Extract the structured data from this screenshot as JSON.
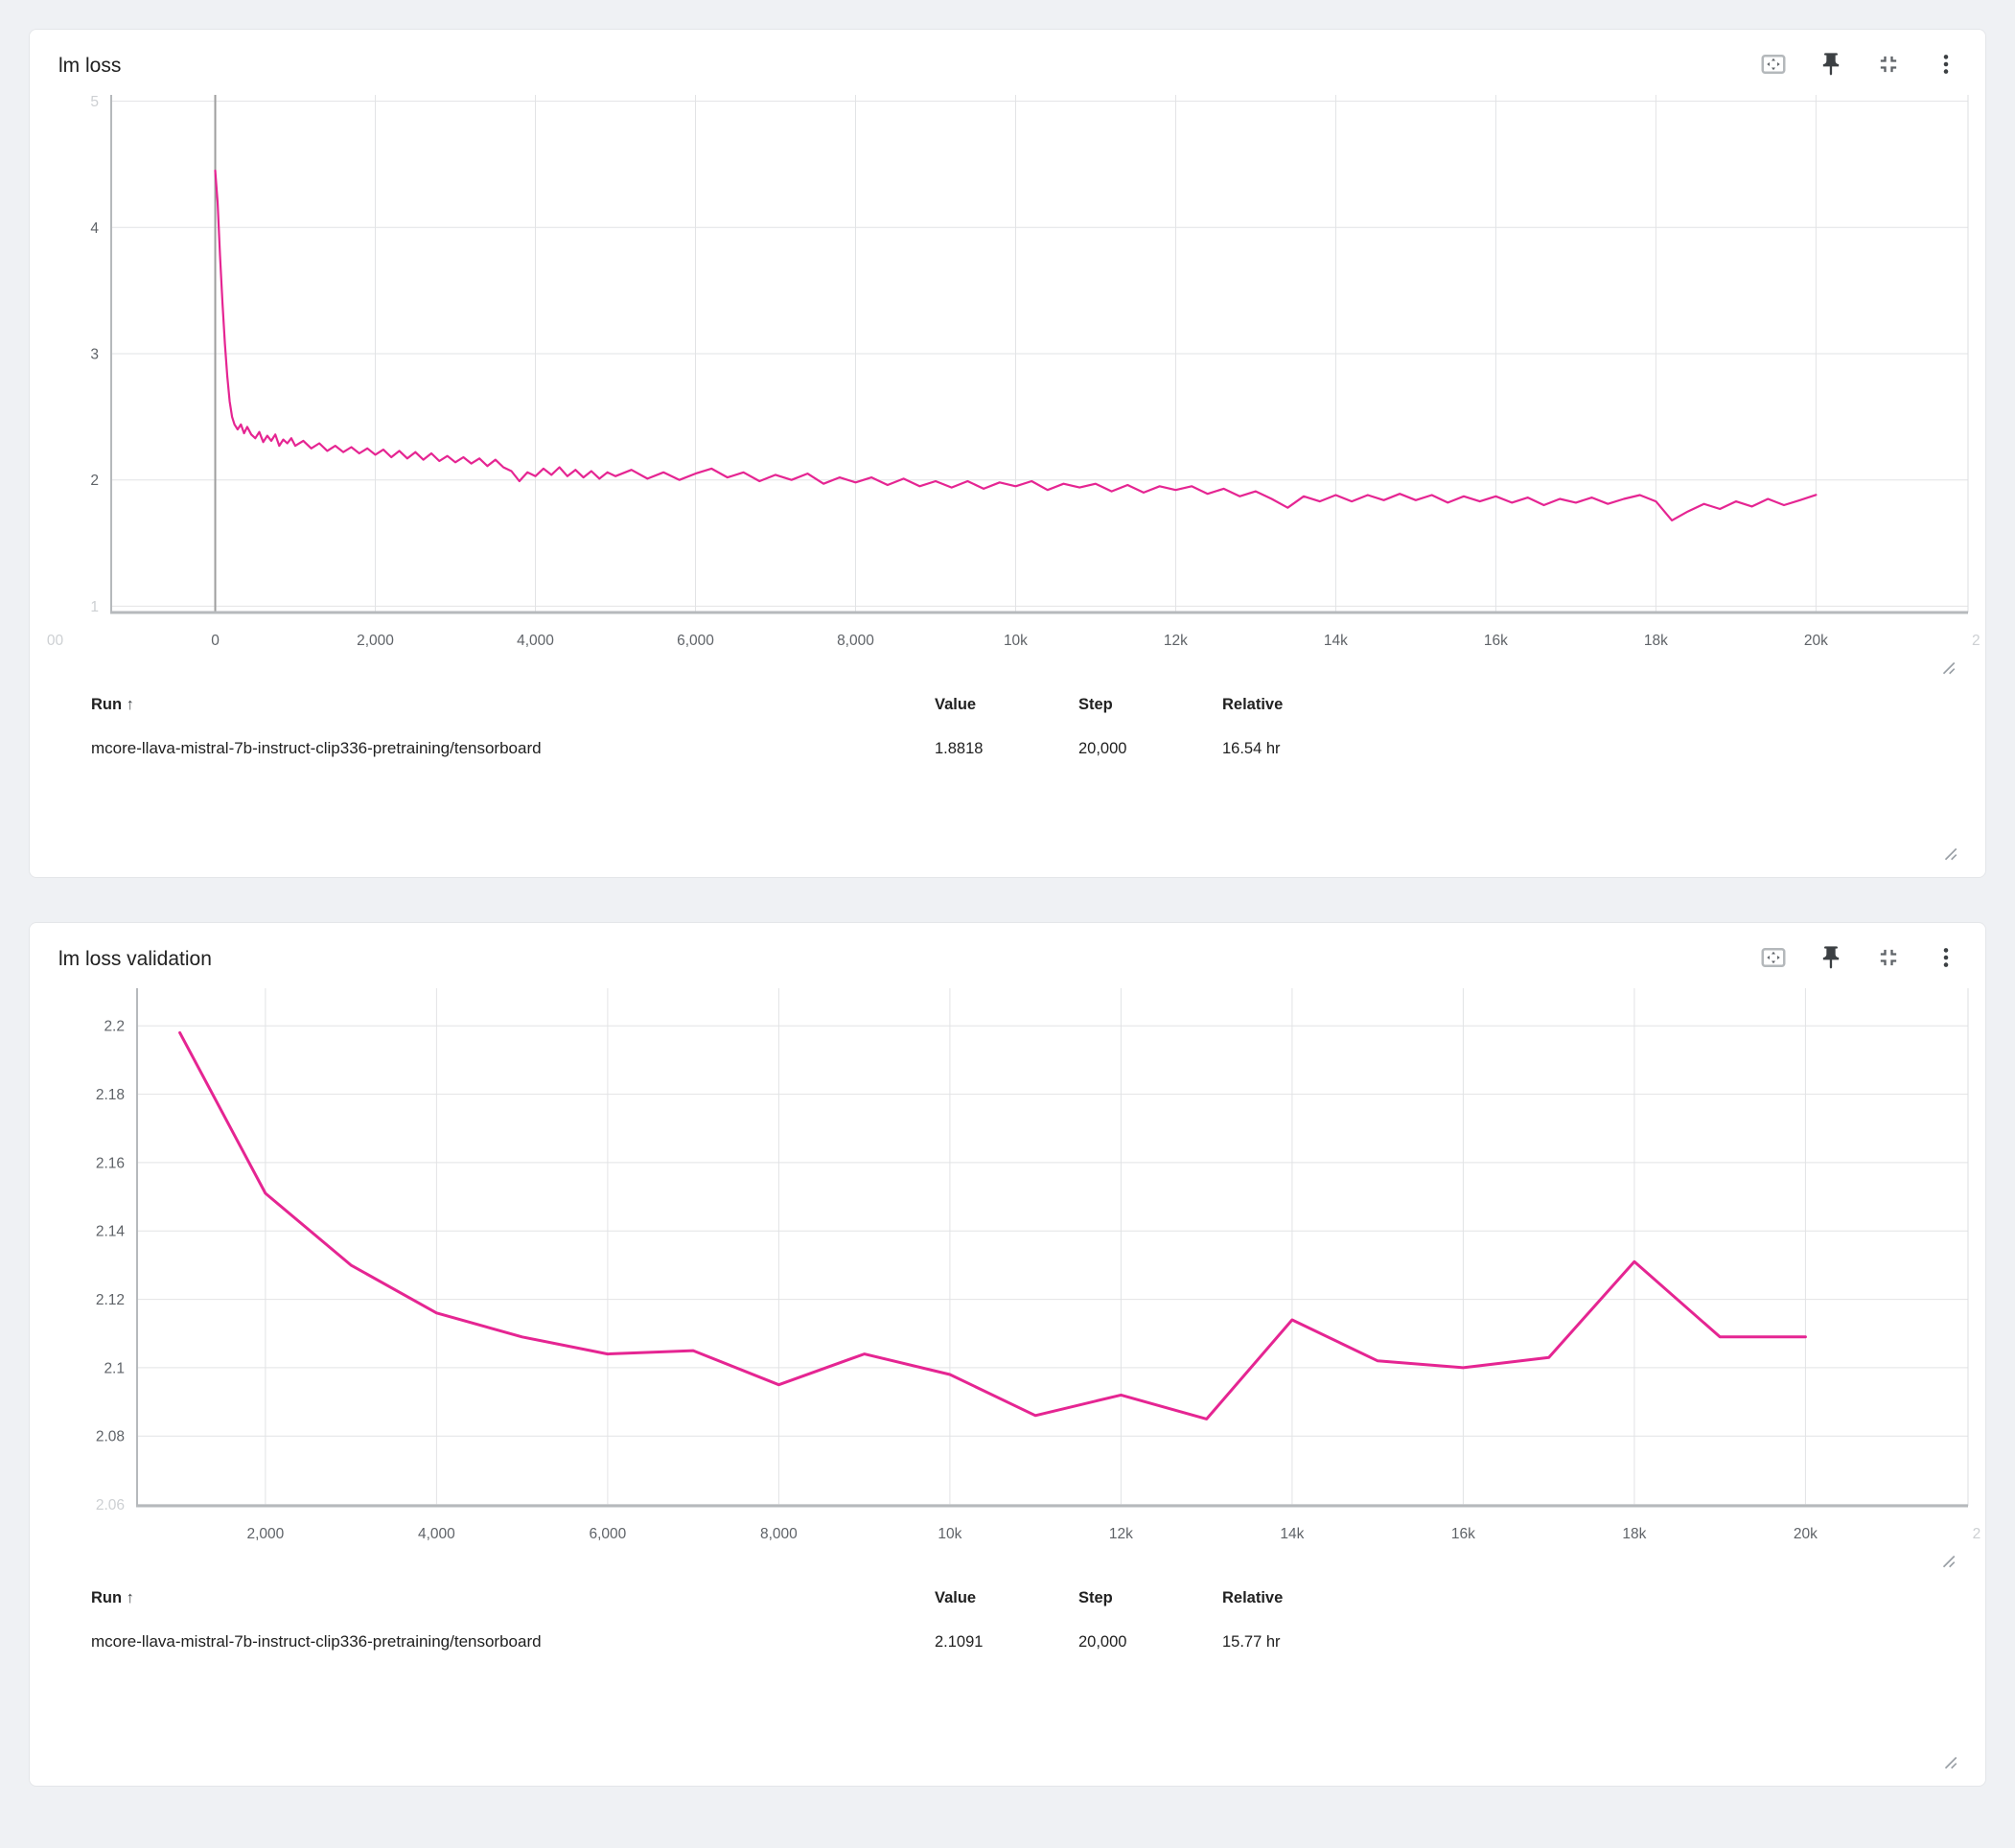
{
  "page": {
    "background": "#eff1f4",
    "accent_pink": "#e52592"
  },
  "cards": [
    {
      "title": "lm loss",
      "toolbar": {
        "icons": [
          "fit-to-data-icon",
          "pin-icon",
          "collapse-icon",
          "more-options-icon"
        ]
      },
      "table": {
        "headers": {
          "run": "Run",
          "value": "Value",
          "step": "Step",
          "relative": "Relative"
        },
        "sort_arrow": "↑",
        "rows": [
          {
            "name": "mcore-llava-mistral-7b-instruct-clip336-pretraining/tensorboard",
            "value": "1.8818",
            "step": "20,000",
            "relative": "16.54 hr",
            "color": "#e52592"
          }
        ]
      },
      "chart_data": {
        "type": "line",
        "title": "lm loss",
        "grid": true,
        "x_domain": [
          -1300,
          21900
        ],
        "y_domain": [
          0.95,
          5.05
        ],
        "y_ticks": [
          {
            "v": 1,
            "label": "1",
            "faded": true
          },
          {
            "v": 2,
            "label": "2"
          },
          {
            "v": 3,
            "label": "3"
          },
          {
            "v": 4,
            "label": "4"
          },
          {
            "v": 5,
            "label": "5",
            "faded": true
          }
        ],
        "x_ticks": [
          {
            "v": -2000,
            "label": "00",
            "faded": true,
            "grid": false
          },
          {
            "v": 0,
            "label": "0",
            "strong": true
          },
          {
            "v": 2000,
            "label": "2,000"
          },
          {
            "v": 4000,
            "label": "4,000"
          },
          {
            "v": 6000,
            "label": "6,000"
          },
          {
            "v": 8000,
            "label": "8,000"
          },
          {
            "v": 10000,
            "label": "10k"
          },
          {
            "v": 12000,
            "label": "12k"
          },
          {
            "v": 14000,
            "label": "14k"
          },
          {
            "v": 16000,
            "label": "16k"
          },
          {
            "v": 18000,
            "label": "18k"
          },
          {
            "v": 20000,
            "label": "20k"
          },
          {
            "v": 22000,
            "label": "2",
            "faded": true,
            "grid": false
          }
        ],
        "series": [
          {
            "name": "mcore-llava-mistral-7b-instruct-clip336-pretraining/tensorboard",
            "color": "#e52592",
            "width": 2.2,
            "final_value": 1.8818,
            "final_step": 20000,
            "points": [
              [
                0,
                4.45
              ],
              [
                30,
                4.2
              ],
              [
                60,
                3.78
              ],
              [
                90,
                3.4
              ],
              [
                120,
                3.08
              ],
              [
                150,
                2.82
              ],
              [
                180,
                2.62
              ],
              [
                210,
                2.5
              ],
              [
                240,
                2.44
              ],
              [
                280,
                2.4
              ],
              [
                320,
                2.44
              ],
              [
                360,
                2.37
              ],
              [
                400,
                2.42
              ],
              [
                450,
                2.36
              ],
              [
                500,
                2.33
              ],
              [
                550,
                2.38
              ],
              [
                600,
                2.3
              ],
              [
                650,
                2.35
              ],
              [
                700,
                2.31
              ],
              [
                750,
                2.36
              ],
              [
                800,
                2.27
              ],
              [
                850,
                2.32
              ],
              [
                900,
                2.29
              ],
              [
                950,
                2.33
              ],
              [
                1000,
                2.27
              ],
              [
                1100,
                2.31
              ],
              [
                1200,
                2.25
              ],
              [
                1300,
                2.29
              ],
              [
                1400,
                2.23
              ],
              [
                1500,
                2.27
              ],
              [
                1600,
                2.22
              ],
              [
                1700,
                2.26
              ],
              [
                1800,
                2.21
              ],
              [
                1900,
                2.25
              ],
              [
                2000,
                2.2
              ],
              [
                2100,
                2.24
              ],
              [
                2200,
                2.18
              ],
              [
                2300,
                2.23
              ],
              [
                2400,
                2.17
              ],
              [
                2500,
                2.22
              ],
              [
                2600,
                2.16
              ],
              [
                2700,
                2.21
              ],
              [
                2800,
                2.15
              ],
              [
                2900,
                2.19
              ],
              [
                3000,
                2.14
              ],
              [
                3100,
                2.18
              ],
              [
                3200,
                2.13
              ],
              [
                3300,
                2.17
              ],
              [
                3400,
                2.11
              ],
              [
                3500,
                2.16
              ],
              [
                3600,
                2.1
              ],
              [
                3700,
                2.07
              ],
              [
                3800,
                1.99
              ],
              [
                3900,
                2.06
              ],
              [
                4000,
                2.03
              ],
              [
                4100,
                2.09
              ],
              [
                4200,
                2.04
              ],
              [
                4300,
                2.1
              ],
              [
                4400,
                2.03
              ],
              [
                4500,
                2.08
              ],
              [
                4600,
                2.02
              ],
              [
                4700,
                2.07
              ],
              [
                4800,
                2.01
              ],
              [
                4900,
                2.06
              ],
              [
                5000,
                2.03
              ],
              [
                5200,
                2.08
              ],
              [
                5400,
                2.01
              ],
              [
                5600,
                2.06
              ],
              [
                5800,
                2.0
              ],
              [
                6000,
                2.05
              ],
              [
                6200,
                2.09
              ],
              [
                6400,
                2.02
              ],
              [
                6600,
                2.06
              ],
              [
                6800,
                1.99
              ],
              [
                7000,
                2.04
              ],
              [
                7200,
                2.0
              ],
              [
                7400,
                2.05
              ],
              [
                7600,
                1.97
              ],
              [
                7800,
                2.02
              ],
              [
                8000,
                1.98
              ],
              [
                8200,
                2.02
              ],
              [
                8400,
                1.96
              ],
              [
                8600,
                2.01
              ],
              [
                8800,
                1.95
              ],
              [
                9000,
                1.99
              ],
              [
                9200,
                1.94
              ],
              [
                9400,
                1.99
              ],
              [
                9600,
                1.93
              ],
              [
                9800,
                1.98
              ],
              [
                10000,
                1.95
              ],
              [
                10200,
                1.99
              ],
              [
                10400,
                1.92
              ],
              [
                10600,
                1.97
              ],
              [
                10800,
                1.94
              ],
              [
                11000,
                1.97
              ],
              [
                11200,
                1.91
              ],
              [
                11400,
                1.96
              ],
              [
                11600,
                1.9
              ],
              [
                11800,
                1.95
              ],
              [
                12000,
                1.92
              ],
              [
                12200,
                1.95
              ],
              [
                12400,
                1.89
              ],
              [
                12600,
                1.93
              ],
              [
                12800,
                1.87
              ],
              [
                13000,
                1.91
              ],
              [
                13200,
                1.85
              ],
              [
                13400,
                1.78
              ],
              [
                13600,
                1.87
              ],
              [
                13800,
                1.83
              ],
              [
                14000,
                1.88
              ],
              [
                14200,
                1.83
              ],
              [
                14400,
                1.88
              ],
              [
                14600,
                1.84
              ],
              [
                14800,
                1.89
              ],
              [
                15000,
                1.84
              ],
              [
                15200,
                1.88
              ],
              [
                15400,
                1.82
              ],
              [
                15600,
                1.87
              ],
              [
                15800,
                1.83
              ],
              [
                16000,
                1.87
              ],
              [
                16200,
                1.82
              ],
              [
                16400,
                1.86
              ],
              [
                16600,
                1.8
              ],
              [
                16800,
                1.85
              ],
              [
                17000,
                1.82
              ],
              [
                17200,
                1.86
              ],
              [
                17400,
                1.81
              ],
              [
                17600,
                1.85
              ],
              [
                17800,
                1.88
              ],
              [
                18000,
                1.83
              ],
              [
                18200,
                1.68
              ],
              [
                18400,
                1.75
              ],
              [
                18600,
                1.81
              ],
              [
                18800,
                1.77
              ],
              [
                19000,
                1.83
              ],
              [
                19200,
                1.79
              ],
              [
                19400,
                1.85
              ],
              [
                19600,
                1.8
              ],
              [
                19800,
                1.84
              ],
              [
                20000,
                1.8818
              ]
            ]
          }
        ]
      }
    },
    {
      "title": "lm loss validation",
      "toolbar": {
        "icons": [
          "fit-to-data-icon",
          "pin-icon",
          "collapse-icon",
          "more-options-icon"
        ]
      },
      "table": {
        "headers": {
          "run": "Run",
          "value": "Value",
          "step": "Step",
          "relative": "Relative"
        },
        "sort_arrow": "↑",
        "rows": [
          {
            "name": "mcore-llava-mistral-7b-instruct-clip336-pretraining/tensorboard",
            "value": "2.1091",
            "step": "20,000",
            "relative": "15.77 hr",
            "color": "#e52592"
          }
        ]
      },
      "chart_data": {
        "type": "line",
        "title": "lm loss validation",
        "grid": true,
        "x_domain": [
          500,
          21900
        ],
        "y_domain": [
          2.0596,
          2.211
        ],
        "y_ticks": [
          {
            "v": 2.06,
            "label": "2.06",
            "faded": true
          },
          {
            "v": 2.08,
            "label": "2.08"
          },
          {
            "v": 2.1,
            "label": "2.1"
          },
          {
            "v": 2.12,
            "label": "2.12"
          },
          {
            "v": 2.14,
            "label": "2.14"
          },
          {
            "v": 2.16,
            "label": "2.16"
          },
          {
            "v": 2.18,
            "label": "2.18"
          },
          {
            "v": 2.2,
            "label": "2.2"
          }
        ],
        "x_ticks": [
          {
            "v": 2000,
            "label": "2,000"
          },
          {
            "v": 4000,
            "label": "4,000"
          },
          {
            "v": 6000,
            "label": "6,000"
          },
          {
            "v": 8000,
            "label": "8,000"
          },
          {
            "v": 10000,
            "label": "10k"
          },
          {
            "v": 12000,
            "label": "12k"
          },
          {
            "v": 14000,
            "label": "14k"
          },
          {
            "v": 16000,
            "label": "16k"
          },
          {
            "v": 18000,
            "label": "18k"
          },
          {
            "v": 20000,
            "label": "20k"
          },
          {
            "v": 22000,
            "label": "2",
            "faded": true,
            "grid": false
          }
        ],
        "series": [
          {
            "name": "mcore-llava-mistral-7b-instruct-clip336-pretraining/tensorboard",
            "color": "#e52592",
            "width": 3,
            "final_value": 2.1091,
            "final_step": 20000,
            "points": [
              [
                1000,
                2.198
              ],
              [
                2000,
                2.151
              ],
              [
                3000,
                2.13
              ],
              [
                4000,
                2.116
              ],
              [
                5000,
                2.109
              ],
              [
                6000,
                2.104
              ],
              [
                7000,
                2.105
              ],
              [
                8000,
                2.095
              ],
              [
                9000,
                2.104
              ],
              [
                10000,
                2.098
              ],
              [
                11000,
                2.086
              ],
              [
                12000,
                2.092
              ],
              [
                13000,
                2.085
              ],
              [
                14000,
                2.114
              ],
              [
                15000,
                2.102
              ],
              [
                16000,
                2.1
              ],
              [
                17000,
                2.103
              ],
              [
                18000,
                2.131
              ],
              [
                19000,
                2.109
              ],
              [
                20000,
                2.109
              ]
            ]
          }
        ]
      }
    }
  ]
}
